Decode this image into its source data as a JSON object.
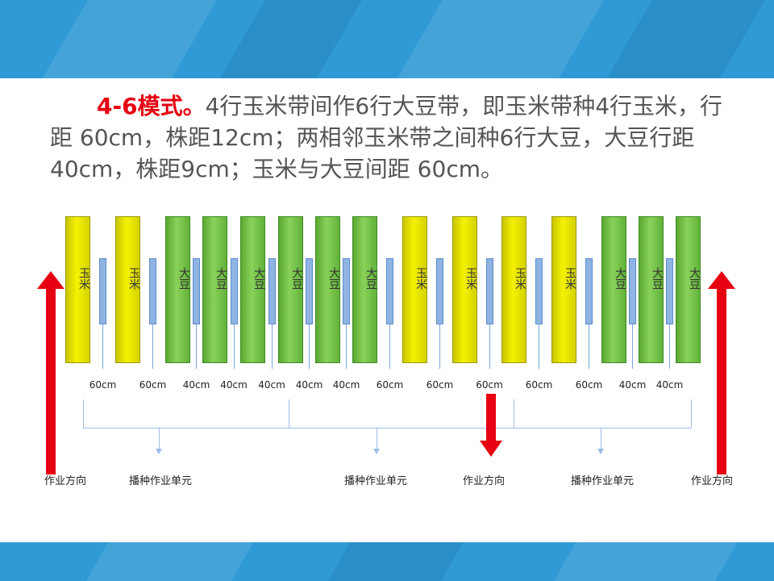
{
  "intro": {
    "highlight": "4-6模式。",
    "text": "4行玉米带间作6行大豆带，即玉米带种4行玉米，行距 60cm，株距12cm；两相邻玉米带之间种6行大豆，大豆行距 40cm，株距9cm；玉米与大豆间距 60cm。"
  },
  "diagram": {
    "corn_label": "玉米",
    "soy_label": "大豆",
    "strips": [
      "corn",
      "corn",
      "soy",
      "soy",
      "soy",
      "soy",
      "soy",
      "soy",
      "corn",
      "corn",
      "corn",
      "corn",
      "soy",
      "soy",
      "soy"
    ],
    "spacings": [
      "60cm",
      "60cm",
      "40cm",
      "40cm",
      "40cm",
      "40cm",
      "40cm",
      "60cm",
      "60cm",
      "60cm",
      "60cm",
      "60cm",
      "40cm",
      "40cm"
    ],
    "unit_label": "播种作业单元",
    "direction_label": "作业方向",
    "colors": {
      "corn": "#f4f200",
      "soy": "#8ad25a",
      "arrow": "#e60012",
      "guide": "#9bbde6"
    }
  }
}
